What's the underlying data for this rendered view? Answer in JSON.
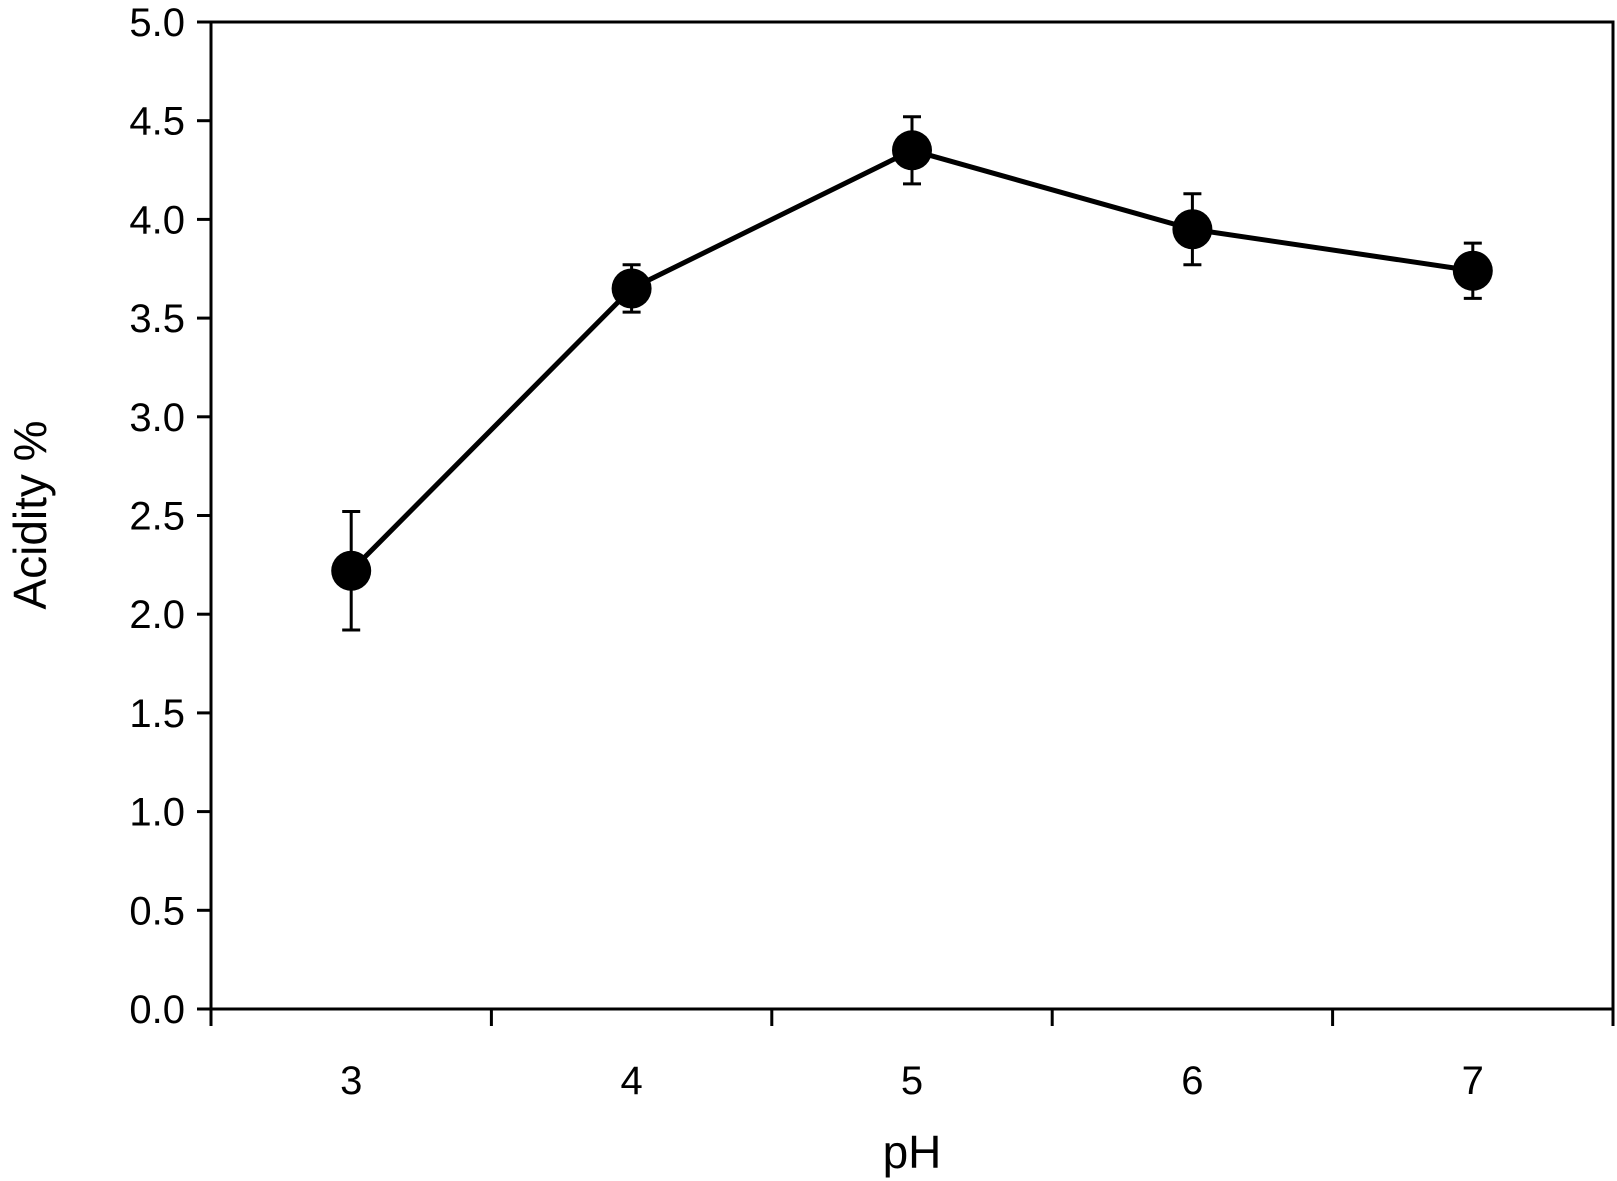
{
  "chart_data": {
    "type": "line",
    "title": "",
    "xlabel": "pH",
    "ylabel": "Acidity %",
    "categories": [
      "3",
      "4",
      "5",
      "6",
      "7"
    ],
    "series": [
      {
        "values": [
          2.22,
          3.65,
          4.35,
          3.95,
          3.74
        ],
        "errors": [
          0.3,
          0.12,
          0.17,
          0.18,
          0.14
        ]
      }
    ],
    "ylim": [
      0,
      5
    ],
    "yticks": [
      "0.0",
      "0.5",
      "1.0",
      "1.5",
      "2.0",
      "2.5",
      "3.0",
      "3.5",
      "4.0",
      "4.5",
      "5.0"
    ],
    "grid": false,
    "legend": "none",
    "colors": {
      "line": "#000000",
      "marker": "#000000"
    }
  }
}
